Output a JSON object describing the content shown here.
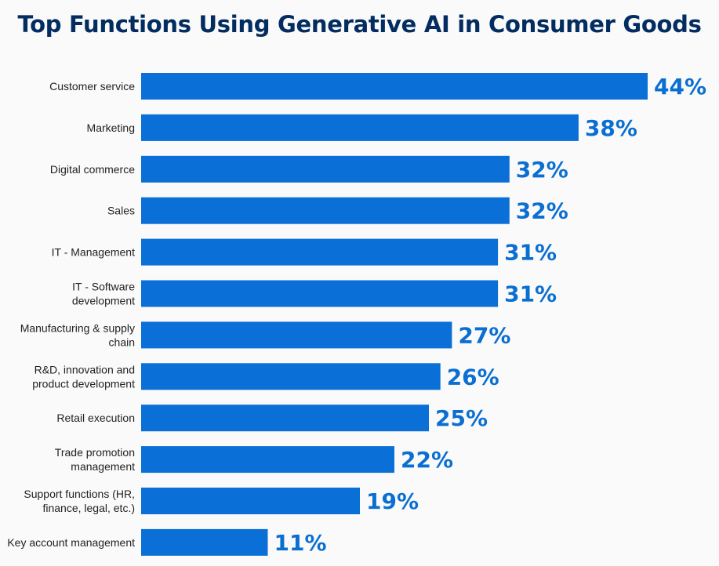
{
  "chart_data": {
    "type": "bar",
    "orientation": "horizontal",
    "title": "Top Functions Using Generative AI in Consumer Goods",
    "categories": [
      "Customer service",
      "Marketing",
      "Digital commerce",
      "Sales",
      "IT - Management",
      "IT - Software development",
      "Manufacturing & supply chain",
      "R&D, innovation and product development",
      "Retail execution",
      "Trade promotion management",
      "Support functions (HR, finance, legal, etc.)",
      "Key account management"
    ],
    "category_lines": [
      [
        "Customer service"
      ],
      [
        "Marketing"
      ],
      [
        "Digital commerce"
      ],
      [
        "Sales"
      ],
      [
        "IT - Management"
      ],
      [
        "IT - Software",
        "development"
      ],
      [
        "Manufacturing & supply",
        "chain"
      ],
      [
        "R&D, innovation and",
        "product development"
      ],
      [
        "Retail execution"
      ],
      [
        "Trade promotion",
        "management"
      ],
      [
        "Support functions (HR,",
        "finance, legal, etc.)"
      ],
      [
        "Key account management"
      ]
    ],
    "values": [
      44,
      38,
      32,
      32,
      31,
      31,
      27,
      26,
      25,
      22,
      19,
      11
    ],
    "value_labels": [
      "44%",
      "38%",
      "32%",
      "32%",
      "31%",
      "31%",
      "27%",
      "26%",
      "25%",
      "22%",
      "19%",
      "11%"
    ],
    "unit": "%",
    "xlim": [
      0,
      50
    ],
    "grid": false,
    "legend": "none",
    "colors": {
      "bar": "#0a6fd6",
      "value_label": "#0b6fd1",
      "title": "#032d60"
    }
  }
}
